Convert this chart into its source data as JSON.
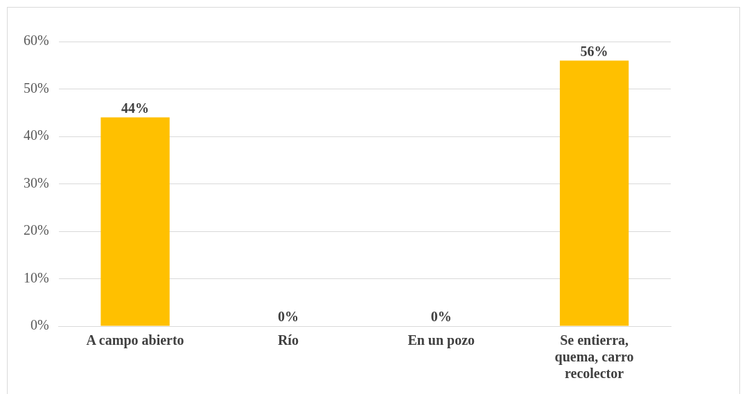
{
  "chart_data": {
    "type": "bar",
    "categories": [
      "A campo abierto",
      "Río",
      "En un pozo",
      "Se entierra, quema, carro recolector"
    ],
    "values": [
      44,
      0,
      0,
      56
    ],
    "color": "#ffc000",
    "value_labels": [
      "44%",
      "0%",
      "0%",
      "56%"
    ],
    "ylim": [
      0,
      60
    ],
    "yticks": [
      {
        "value": 0,
        "label": "0%"
      },
      {
        "value": 10,
        "label": "10%"
      },
      {
        "value": 20,
        "label": "20%"
      },
      {
        "value": 30,
        "label": "30%"
      },
      {
        "value": 40,
        "label": "40%"
      },
      {
        "value": 50,
        "label": "50%"
      },
      {
        "value": 60,
        "label": "60%"
      }
    ],
    "grid": "y",
    "legend": false
  }
}
